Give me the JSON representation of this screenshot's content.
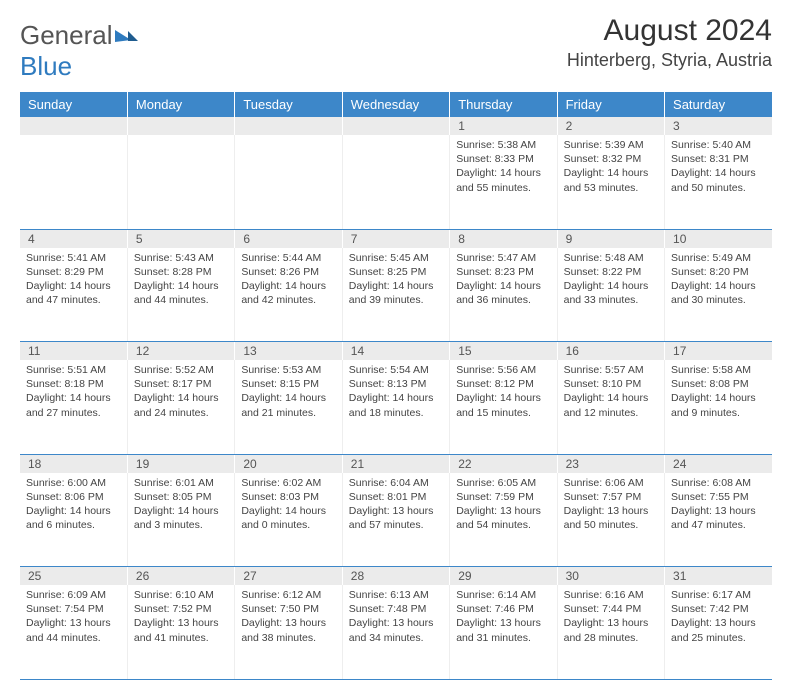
{
  "logo": {
    "text1": "General",
    "text2": "Blue"
  },
  "title": "August 2024",
  "location": "Hinterberg, Styria, Austria",
  "colors": {
    "header_bg": "#3d87c9",
    "header_fg": "#ffffff",
    "daynum_bg": "#ebebeb",
    "row_divider": "#3d87c9",
    "text": "#444444",
    "background": "#ffffff"
  },
  "weekdays": [
    "Sunday",
    "Monday",
    "Tuesday",
    "Wednesday",
    "Thursday",
    "Friday",
    "Saturday"
  ],
  "weeks": [
    [
      {
        "n": "",
        "sunrise": "",
        "sunset": "",
        "daylight": ""
      },
      {
        "n": "",
        "sunrise": "",
        "sunset": "",
        "daylight": ""
      },
      {
        "n": "",
        "sunrise": "",
        "sunset": "",
        "daylight": ""
      },
      {
        "n": "",
        "sunrise": "",
        "sunset": "",
        "daylight": ""
      },
      {
        "n": "1",
        "sunrise": "Sunrise: 5:38 AM",
        "sunset": "Sunset: 8:33 PM",
        "daylight": "Daylight: 14 hours and 55 minutes."
      },
      {
        "n": "2",
        "sunrise": "Sunrise: 5:39 AM",
        "sunset": "Sunset: 8:32 PM",
        "daylight": "Daylight: 14 hours and 53 minutes."
      },
      {
        "n": "3",
        "sunrise": "Sunrise: 5:40 AM",
        "sunset": "Sunset: 8:31 PM",
        "daylight": "Daylight: 14 hours and 50 minutes."
      }
    ],
    [
      {
        "n": "4",
        "sunrise": "Sunrise: 5:41 AM",
        "sunset": "Sunset: 8:29 PM",
        "daylight": "Daylight: 14 hours and 47 minutes."
      },
      {
        "n": "5",
        "sunrise": "Sunrise: 5:43 AM",
        "sunset": "Sunset: 8:28 PM",
        "daylight": "Daylight: 14 hours and 44 minutes."
      },
      {
        "n": "6",
        "sunrise": "Sunrise: 5:44 AM",
        "sunset": "Sunset: 8:26 PM",
        "daylight": "Daylight: 14 hours and 42 minutes."
      },
      {
        "n": "7",
        "sunrise": "Sunrise: 5:45 AM",
        "sunset": "Sunset: 8:25 PM",
        "daylight": "Daylight: 14 hours and 39 minutes."
      },
      {
        "n": "8",
        "sunrise": "Sunrise: 5:47 AM",
        "sunset": "Sunset: 8:23 PM",
        "daylight": "Daylight: 14 hours and 36 minutes."
      },
      {
        "n": "9",
        "sunrise": "Sunrise: 5:48 AM",
        "sunset": "Sunset: 8:22 PM",
        "daylight": "Daylight: 14 hours and 33 minutes."
      },
      {
        "n": "10",
        "sunrise": "Sunrise: 5:49 AM",
        "sunset": "Sunset: 8:20 PM",
        "daylight": "Daylight: 14 hours and 30 minutes."
      }
    ],
    [
      {
        "n": "11",
        "sunrise": "Sunrise: 5:51 AM",
        "sunset": "Sunset: 8:18 PM",
        "daylight": "Daylight: 14 hours and 27 minutes."
      },
      {
        "n": "12",
        "sunrise": "Sunrise: 5:52 AM",
        "sunset": "Sunset: 8:17 PM",
        "daylight": "Daylight: 14 hours and 24 minutes."
      },
      {
        "n": "13",
        "sunrise": "Sunrise: 5:53 AM",
        "sunset": "Sunset: 8:15 PM",
        "daylight": "Daylight: 14 hours and 21 minutes."
      },
      {
        "n": "14",
        "sunrise": "Sunrise: 5:54 AM",
        "sunset": "Sunset: 8:13 PM",
        "daylight": "Daylight: 14 hours and 18 minutes."
      },
      {
        "n": "15",
        "sunrise": "Sunrise: 5:56 AM",
        "sunset": "Sunset: 8:12 PM",
        "daylight": "Daylight: 14 hours and 15 minutes."
      },
      {
        "n": "16",
        "sunrise": "Sunrise: 5:57 AM",
        "sunset": "Sunset: 8:10 PM",
        "daylight": "Daylight: 14 hours and 12 minutes."
      },
      {
        "n": "17",
        "sunrise": "Sunrise: 5:58 AM",
        "sunset": "Sunset: 8:08 PM",
        "daylight": "Daylight: 14 hours and 9 minutes."
      }
    ],
    [
      {
        "n": "18",
        "sunrise": "Sunrise: 6:00 AM",
        "sunset": "Sunset: 8:06 PM",
        "daylight": "Daylight: 14 hours and 6 minutes."
      },
      {
        "n": "19",
        "sunrise": "Sunrise: 6:01 AM",
        "sunset": "Sunset: 8:05 PM",
        "daylight": "Daylight: 14 hours and 3 minutes."
      },
      {
        "n": "20",
        "sunrise": "Sunrise: 6:02 AM",
        "sunset": "Sunset: 8:03 PM",
        "daylight": "Daylight: 14 hours and 0 minutes."
      },
      {
        "n": "21",
        "sunrise": "Sunrise: 6:04 AM",
        "sunset": "Sunset: 8:01 PM",
        "daylight": "Daylight: 13 hours and 57 minutes."
      },
      {
        "n": "22",
        "sunrise": "Sunrise: 6:05 AM",
        "sunset": "Sunset: 7:59 PM",
        "daylight": "Daylight: 13 hours and 54 minutes."
      },
      {
        "n": "23",
        "sunrise": "Sunrise: 6:06 AM",
        "sunset": "Sunset: 7:57 PM",
        "daylight": "Daylight: 13 hours and 50 minutes."
      },
      {
        "n": "24",
        "sunrise": "Sunrise: 6:08 AM",
        "sunset": "Sunset: 7:55 PM",
        "daylight": "Daylight: 13 hours and 47 minutes."
      }
    ],
    [
      {
        "n": "25",
        "sunrise": "Sunrise: 6:09 AM",
        "sunset": "Sunset: 7:54 PM",
        "daylight": "Daylight: 13 hours and 44 minutes."
      },
      {
        "n": "26",
        "sunrise": "Sunrise: 6:10 AM",
        "sunset": "Sunset: 7:52 PM",
        "daylight": "Daylight: 13 hours and 41 minutes."
      },
      {
        "n": "27",
        "sunrise": "Sunrise: 6:12 AM",
        "sunset": "Sunset: 7:50 PM",
        "daylight": "Daylight: 13 hours and 38 minutes."
      },
      {
        "n": "28",
        "sunrise": "Sunrise: 6:13 AM",
        "sunset": "Sunset: 7:48 PM",
        "daylight": "Daylight: 13 hours and 34 minutes."
      },
      {
        "n": "29",
        "sunrise": "Sunrise: 6:14 AM",
        "sunset": "Sunset: 7:46 PM",
        "daylight": "Daylight: 13 hours and 31 minutes."
      },
      {
        "n": "30",
        "sunrise": "Sunrise: 6:16 AM",
        "sunset": "Sunset: 7:44 PM",
        "daylight": "Daylight: 13 hours and 28 minutes."
      },
      {
        "n": "31",
        "sunrise": "Sunrise: 6:17 AM",
        "sunset": "Sunset: 7:42 PM",
        "daylight": "Daylight: 13 hours and 25 minutes."
      }
    ]
  ]
}
